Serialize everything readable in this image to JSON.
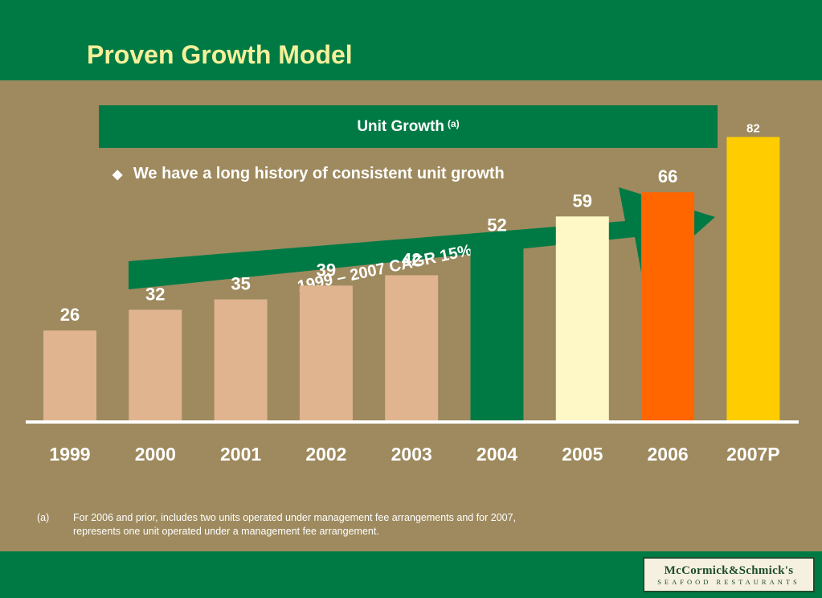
{
  "slide": {
    "title": "Proven Growth Model",
    "header_label": "Unit Growth",
    "header_superscript": "(a)",
    "bullet_symbol": "◆",
    "bullet_text": "We have a long history of consistent unit growth",
    "arrow_label": "1999 – 2007 CAGR 15%",
    "footnote_mark": "(a)",
    "footnote_text": "For 2006 and prior, includes two units operated under management fee arrangements and for 2007, represents one unit operated under a management fee arrangement.",
    "logo_top": "McCormick&Schmick's",
    "logo_bottom": "SEAFOOD RESTAURANTS"
  },
  "colors": {
    "green": "#007a45",
    "background": "#9e8a5e",
    "title": "#f6f09a",
    "tan": "#dfb48e",
    "cream": "#fdf8c6",
    "orange": "#ff6600",
    "gold": "#ffcc00"
  },
  "chart_data": {
    "type": "bar",
    "categories": [
      "1999",
      "2000",
      "2001",
      "2002",
      "2003",
      "2004",
      "2005",
      "2006",
      "2007P"
    ],
    "values": [
      26,
      32,
      35,
      39,
      42,
      52,
      59,
      66,
      82
    ],
    "bar_colors": [
      "#dfb48e",
      "#dfb48e",
      "#dfb48e",
      "#dfb48e",
      "#dfb48e",
      "#007a45",
      "#fdf8c6",
      "#ff6600",
      "#ffcc00"
    ],
    "title": "",
    "xlabel": "",
    "ylabel": "",
    "ylim": [
      0,
      90
    ],
    "grid": false
  }
}
